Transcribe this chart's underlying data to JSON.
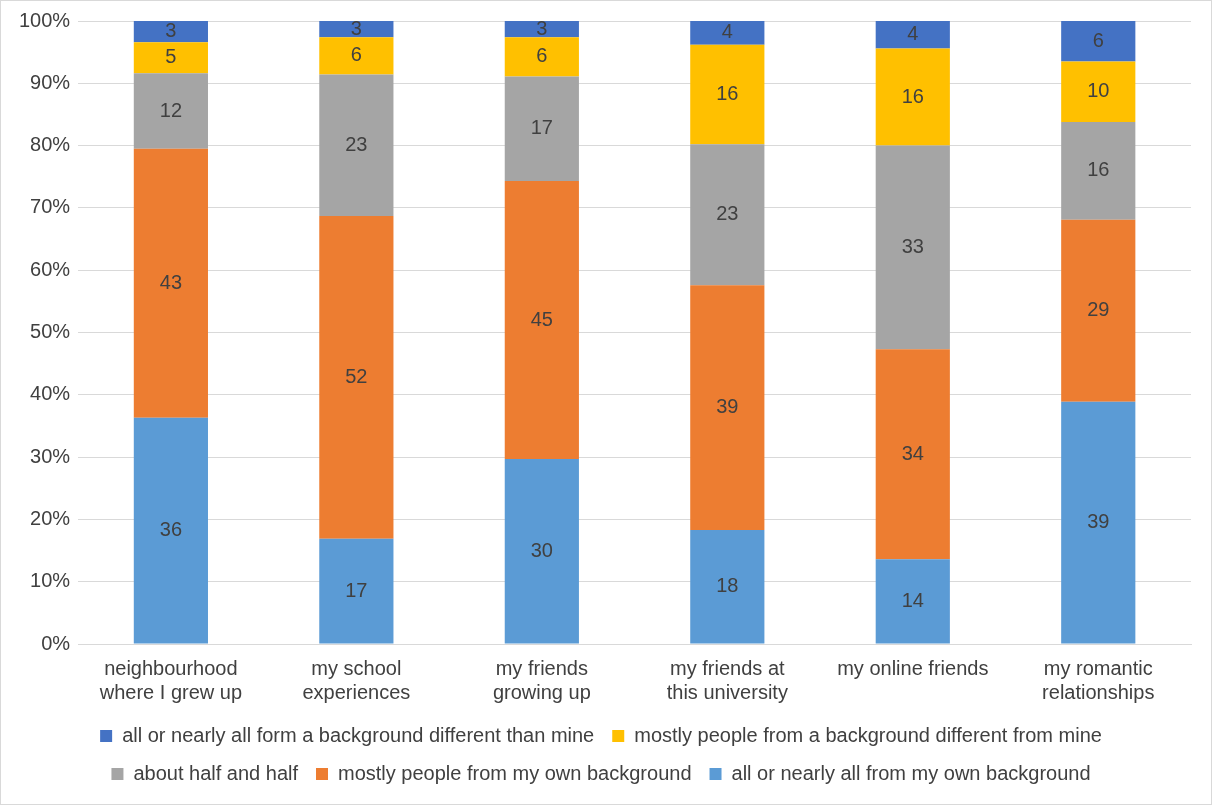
{
  "chart_data": {
    "type": "bar",
    "stacked": true,
    "categories": [
      "neighbourhood where I grew up",
      "my school experiences",
      "my friends growing up",
      "my friends at this university",
      "my online friends",
      "my romantic relationships"
    ],
    "series": [
      {
        "name": "all or nearly all from my own background",
        "color": "#5b9bd5",
        "values": [
          36.3,
          16.9,
          29.7,
          18.3,
          13.6,
          38.9
        ],
        "value_labels": [
          "36",
          "17",
          "30",
          "18",
          "14",
          "39"
        ]
      },
      {
        "name": "mostly people from my own background",
        "color": "#ed7d31",
        "values": [
          43.2,
          51.8,
          44.6,
          39.3,
          33.7,
          29.2
        ],
        "value_labels": [
          "43",
          "52",
          "45",
          "39",
          "34",
          "29"
        ]
      },
      {
        "name": "about half and half",
        "color": "#a5a5a5",
        "values": [
          12.1,
          22.7,
          16.8,
          22.6,
          32.7,
          15.7
        ],
        "value_labels": [
          "12",
          "23",
          "17",
          "23",
          "33",
          "16"
        ]
      },
      {
        "name": "mostly people from a background different from mine",
        "color": "#ffc000",
        "values": [
          5.0,
          6.0,
          6.3,
          16.0,
          15.6,
          9.7
        ],
        "value_labels": [
          "5",
          "6",
          "6",
          "16",
          "16",
          "10"
        ]
      },
      {
        "name": "all or nearly all form a background different than mine",
        "color": "#4472c4",
        "values": [
          3.4,
          2.6,
          2.6,
          3.8,
          4.4,
          6.5
        ],
        "value_labels": [
          "3",
          "3",
          "3",
          "4",
          "4",
          "6"
        ]
      }
    ],
    "ylim": [
      0,
      100
    ],
    "yticks": [
      {
        "value": 0,
        "label": "0%"
      },
      {
        "value": 10,
        "label": "10%"
      },
      {
        "value": 20,
        "label": "20%"
      },
      {
        "value": 30,
        "label": "30%"
      },
      {
        "value": 40,
        "label": "40%"
      },
      {
        "value": 50,
        "label": "50%"
      },
      {
        "value": 60,
        "label": "60%"
      },
      {
        "value": 70,
        "label": "70%"
      },
      {
        "value": 80,
        "label": "80%"
      },
      {
        "value": 90,
        "label": "90%"
      },
      {
        "value": 100,
        "label": "100%"
      }
    ],
    "grid": "y",
    "legend": "bottom"
  }
}
